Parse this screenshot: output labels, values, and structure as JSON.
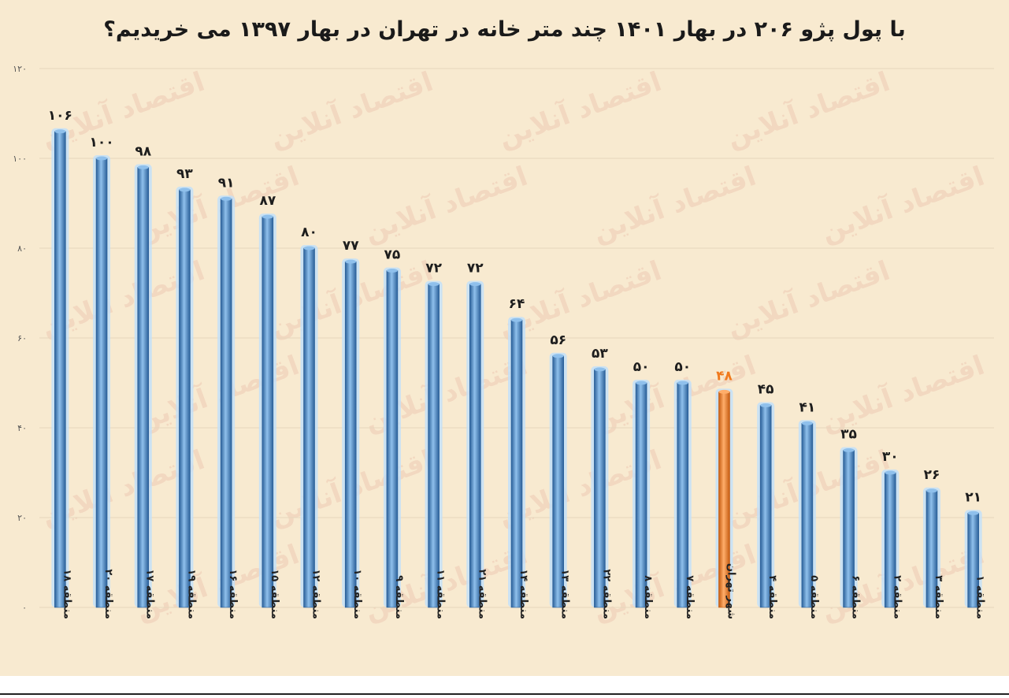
{
  "chart_data": {
    "type": "bar",
    "title": "با پول پژو ۲۰۶ در بهار ۱۴۰۱ چند متر خانه در تهران در بهار ۱۳۹۷ می خریدیم؟",
    "categories": [
      "منطقه ۱۸",
      "منطقه ۲۰",
      "منطقه ۱۷",
      "منطقه ۱۹",
      "منطقه ۱۶",
      "منطقه ۱۵",
      "منطقه ۱۲",
      "منطقه ۱۰",
      "منطقه ۹",
      "منطقه ۱۱",
      "منطقه ۲۱",
      "منطقه ۱۴",
      "منطقه ۱۳",
      "منطقه ۲۲",
      "منطقه ۸",
      "منطقه ۷",
      "شهر تهران",
      "منطقه ۴",
      "منطقه ۵",
      "منطقه ۶",
      "منطقه ۲",
      "منطقه ۳",
      "منطقه ۱"
    ],
    "values": [
      106,
      100,
      98,
      93,
      91,
      87,
      80,
      77,
      75,
      72,
      72,
      64,
      56,
      53,
      50,
      50,
      48,
      45,
      41,
      35,
      30,
      26,
      21
    ],
    "value_labels": [
      "۱۰۶",
      "۱۰۰",
      "۹۸",
      "۹۳",
      "۹۱",
      "۸۷",
      "۸۰",
      "۷۷",
      "۷۵",
      "۷۲",
      "۷۲",
      "۶۴",
      "۵۶",
      "۵۳",
      "۵۰",
      "۵۰",
      "۴۸",
      "۴۵",
      "۴۱",
      "۳۵",
      "۳۰",
      "۲۶",
      "۲۱"
    ],
    "highlight_category": "شهر تهران",
    "ylim": [
      0,
      120
    ],
    "yticks": [
      0,
      20,
      40,
      60,
      80,
      100,
      120
    ],
    "ytick_labels": [
      "۰",
      "۲۰",
      "۴۰",
      "۶۰",
      "۸۰",
      "۱۰۰",
      "۱۲۰"
    ],
    "xlabel": "",
    "ylabel": "",
    "grid": true,
    "colors": {
      "bar": "#3f82c4",
      "bar_light": "#8fc0ec",
      "bar_dark": "#2a5f98",
      "highlight": "#f07a1e",
      "highlight_light": "#ffae6a",
      "highlight_dark": "#c45a10",
      "glow": "#bfe0fb",
      "label": "#1d1d1d",
      "highlight_label": "#f07a1e",
      "grid": "#e6d6bd",
      "background": "#f8ead0"
    }
  },
  "watermark": {
    "text": "اقتصاد آنلاین"
  }
}
